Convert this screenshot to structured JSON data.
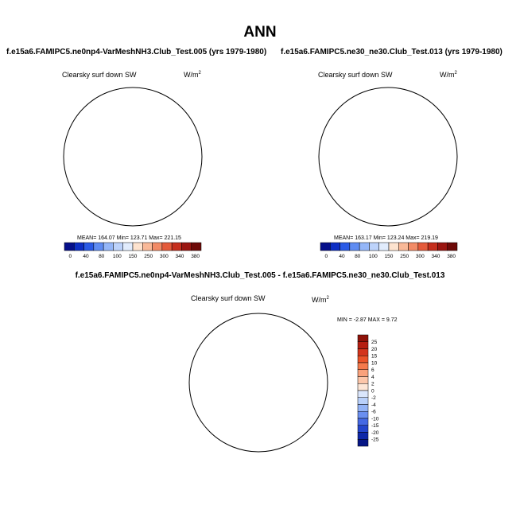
{
  "figure": {
    "title": "ANN",
    "colors": {
      "pole_blue": "#a7bdf2",
      "mid_blue": "#c6d7fa",
      "light_blue": "#dfeafd",
      "peach": "#fde3cf",
      "light_peach": "#fdeee3",
      "land_line": "#000000"
    }
  },
  "panels": [
    {
      "id": "model-a",
      "title": "f.e15a6.FAMIPC5.ne0np4-VarMeshNH3.Club_Test.005 (yrs 1979-1980)",
      "variable": "Clearsky surf down SW",
      "units_base": "W/m",
      "units_exp": "2",
      "stats_text": "MEAN= 164.07  Min= 123.71  Max= 221.15"
    },
    {
      "id": "model-b",
      "title": "f.e15a6.FAMIPC5.ne30_ne30.Club_Test.013 (yrs 1979-1980)",
      "variable": "Clearsky surf down SW",
      "units_base": "W/m",
      "units_exp": "2",
      "stats_text": "MEAN= 163.17  Min= 123.24  Max= 219.19"
    }
  ],
  "difference": {
    "title": "f.e15a6.FAMIPC5.ne0np4-VarMeshNH3.Club_Test.005 - f.e15a6.FAMIPC5.ne30_ne30.Club_Test.013",
    "variable": "Clearsky surf down SW",
    "units_base": "W/m",
    "units_exp": "2",
    "stats_text": "MIN =  -2.87 MAX =   9.72"
  },
  "colorbar_abs": {
    "labels": [
      "0",
      "40",
      "80",
      "100",
      "150",
      "250",
      "300",
      "340",
      "380"
    ],
    "colors": [
      "#050f8a",
      "#0d2ec4",
      "#2a5ae6",
      "#5f8cf2",
      "#94b6f8",
      "#bdd3fb",
      "#e1ecfd",
      "#fde3cf",
      "#f9b998",
      "#f28b66",
      "#e45a3a",
      "#c52e1c",
      "#9a1510",
      "#6e0a08"
    ]
  },
  "colorbar_diff": {
    "labels": [
      "25",
      "20",
      "15",
      "10",
      "6",
      "4",
      "2",
      "0",
      "-2",
      "-4",
      "-6",
      "-10",
      "-15",
      "-20",
      "-25"
    ],
    "colors": [
      "#8e1209",
      "#b51f12",
      "#d3341c",
      "#ea5329",
      "#f57a4c",
      "#f9a27c",
      "#fcc6a9",
      "#fde6d6",
      "#dae6fc",
      "#b9d0fa",
      "#93b3f6",
      "#6b8ff0",
      "#4569e4",
      "#2445cc",
      "#0e27a8",
      "#061685"
    ]
  }
}
